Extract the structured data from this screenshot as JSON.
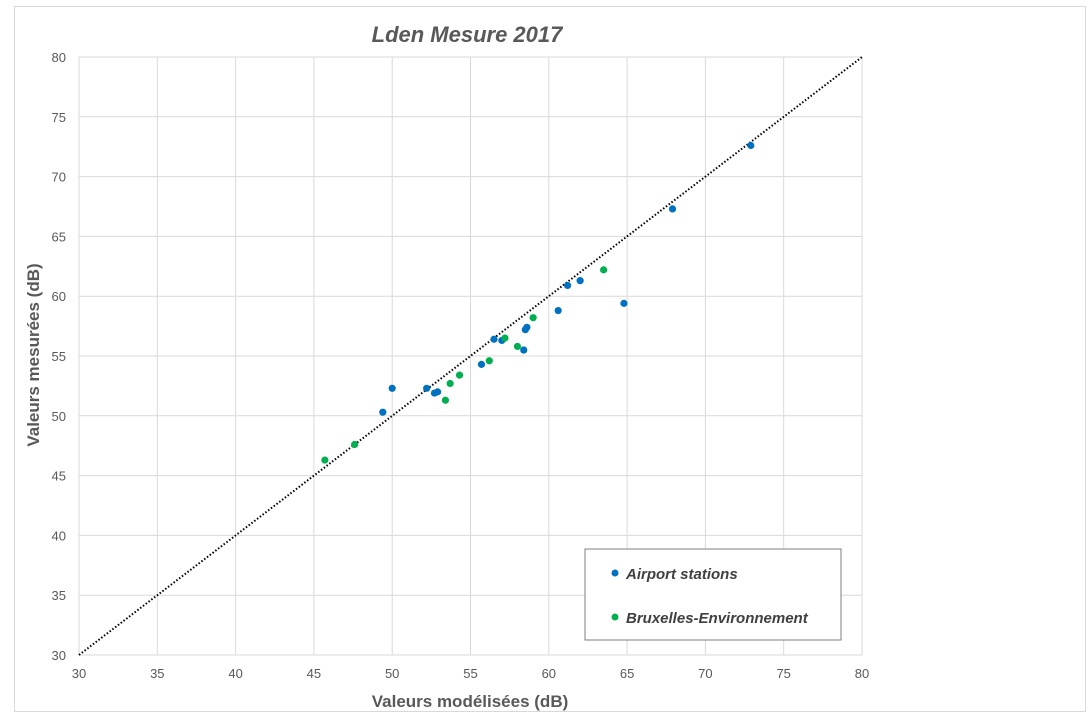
{
  "chart_data": {
    "type": "scatter",
    "title": "Lden Mesure 2017",
    "xlabel": "Valeurs modélisées (dB)",
    "ylabel": "Valeurs mesurées (dB)",
    "xlim": [
      30,
      80
    ],
    "ylim": [
      30,
      80
    ],
    "xticks": [
      30,
      35,
      40,
      45,
      50,
      55,
      60,
      65,
      70,
      75,
      80
    ],
    "yticks": [
      30,
      35,
      40,
      45,
      50,
      55,
      60,
      65,
      70,
      75,
      80
    ],
    "grid": true,
    "legend_position": "bottom-right",
    "reference_line": {
      "style": "dotted",
      "color": "#000000",
      "from": [
        30,
        30
      ],
      "to": [
        80,
        80
      ]
    },
    "series": [
      {
        "name": "Airport stations",
        "color": "#0070c0",
        "points": [
          [
            49.4,
            50.3
          ],
          [
            50.0,
            52.3
          ],
          [
            52.2,
            52.3
          ],
          [
            52.7,
            51.9
          ],
          [
            52.9,
            52.0
          ],
          [
            55.7,
            54.3
          ],
          [
            56.5,
            56.4
          ],
          [
            57.0,
            56.3
          ],
          [
            58.4,
            55.5
          ],
          [
            58.5,
            57.2
          ],
          [
            58.6,
            57.4
          ],
          [
            60.6,
            58.8
          ],
          [
            61.2,
            60.9
          ],
          [
            62.0,
            61.3
          ],
          [
            64.8,
            59.4
          ],
          [
            67.9,
            67.3
          ],
          [
            72.9,
            72.6
          ]
        ]
      },
      {
        "name": "Bruxelles-Environnement",
        "color": "#00b050",
        "points": [
          [
            45.7,
            46.3
          ],
          [
            47.6,
            47.6
          ],
          [
            53.4,
            51.3
          ],
          [
            53.7,
            52.7
          ],
          [
            54.3,
            53.4
          ],
          [
            56.2,
            54.6
          ],
          [
            57.2,
            56.5
          ],
          [
            58.0,
            55.8
          ],
          [
            59.0,
            58.2
          ],
          [
            63.5,
            62.2
          ]
        ]
      }
    ]
  }
}
